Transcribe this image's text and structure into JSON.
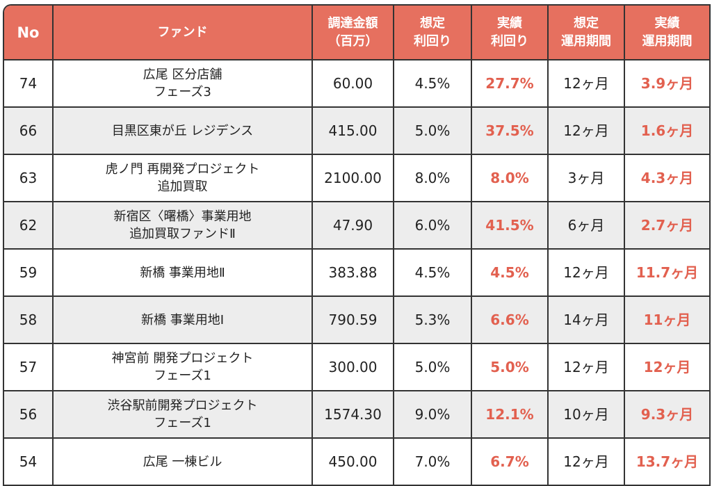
{
  "headers": [
    "No",
    "ファンド",
    "調達金額\n（百万）",
    "想定\n利回り",
    "実績\n利回り",
    "想定\n運用期間",
    "実績\n運用期間"
  ],
  "colors": {
    "header": "#E6705F",
    "highlight": "#E2604F",
    "alt_row": "#EDEDED"
  },
  "rows": [
    {
      "no": "74",
      "fund": "広尾 区分店舗\nフェーズ3",
      "amount": "60.00",
      "expected_yield": "4.5%",
      "actual_yield": "27.7%",
      "expected_period": "12ヶ月",
      "actual_period": "3.9ヶ月"
    },
    {
      "no": "66",
      "fund": "目黒区東が丘 レジデンス",
      "amount": "415.00",
      "expected_yield": "5.0%",
      "actual_yield": "37.5%",
      "expected_period": "12ヶ月",
      "actual_period": "1.6ヶ月"
    },
    {
      "no": "63",
      "fund": "虎ノ門 再開発プロジェクト\n追加買取",
      "amount": "2100.00",
      "expected_yield": "8.0%",
      "actual_yield": "8.0%",
      "expected_period": "3ヶ月",
      "actual_period": "4.3ヶ月"
    },
    {
      "no": "62",
      "fund": "新宿区〈曙橋〉事業用地\n追加買取ファンドⅡ",
      "amount": "47.90",
      "expected_yield": "6.0%",
      "actual_yield": "41.5%",
      "expected_period": "6ヶ月",
      "actual_period": "2.7ヶ月"
    },
    {
      "no": "59",
      "fund": "新橋 事業用地Ⅱ",
      "amount": "383.88",
      "expected_yield": "4.5%",
      "actual_yield": "4.5%",
      "expected_period": "12ヶ月",
      "actual_period": "11.7ヶ月"
    },
    {
      "no": "58",
      "fund": "新橋 事業用地Ⅰ",
      "amount": "790.59",
      "expected_yield": "5.3%",
      "actual_yield": "6.6%",
      "expected_period": "14ヶ月",
      "actual_period": "11ヶ月"
    },
    {
      "no": "57",
      "fund": "神宮前 開発プロジェクト\nフェーズ1",
      "amount": "300.00",
      "expected_yield": "5.0%",
      "actual_yield": "5.0%",
      "expected_period": "12ヶ月",
      "actual_period": "12ヶ月"
    },
    {
      "no": "56",
      "fund": "渋谷駅前開発プロジェクト\nフェーズ1",
      "amount": "1574.30",
      "expected_yield": "9.0%",
      "actual_yield": "12.1%",
      "expected_period": "10ヶ月",
      "actual_period": "9.3ヶ月"
    },
    {
      "no": "54",
      "fund": "広尾 一棟ビル",
      "amount": "450.00",
      "expected_yield": "7.0%",
      "actual_yield": "6.7%",
      "expected_period": "12ヶ月",
      "actual_period": "13.7ヶ月"
    }
  ]
}
